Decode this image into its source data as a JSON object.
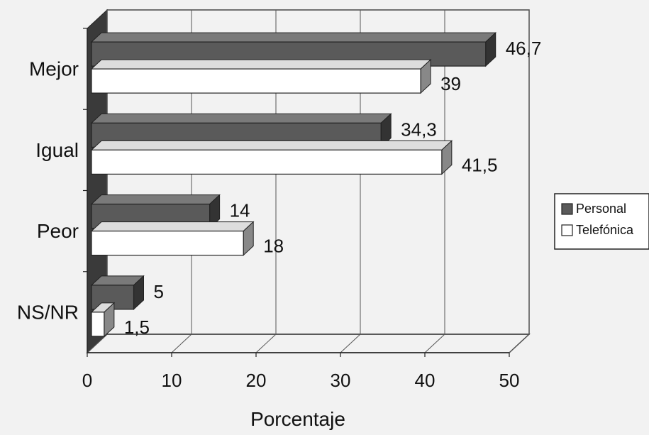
{
  "chart_data": {
    "type": "bar",
    "orientation": "horizontal",
    "categories": [
      "Mejor",
      "Igual",
      "Peor",
      "NS/NR"
    ],
    "series": [
      {
        "name": "Personal",
        "values": [
          46.7,
          34.3,
          14,
          5
        ],
        "labels": [
          "46,7",
          "34,3",
          "14",
          "5"
        ]
      },
      {
        "name": "Telefónica",
        "values": [
          39,
          41.5,
          18,
          1.5
        ],
        "labels": [
          "39",
          "41,5",
          "18",
          "1,5"
        ]
      }
    ],
    "xlabel": "Porcentaje",
    "ylabel": "",
    "xlim": [
      0,
      50
    ],
    "xticks": [
      "0",
      "10",
      "20",
      "30",
      "40",
      "50"
    ],
    "grid": true,
    "legend": "right",
    "colors": {
      "Personal": "#5a5a5a",
      "Telefónica": "#ffffff",
      "background": "#f2f2f2",
      "grid": "#555555"
    }
  }
}
